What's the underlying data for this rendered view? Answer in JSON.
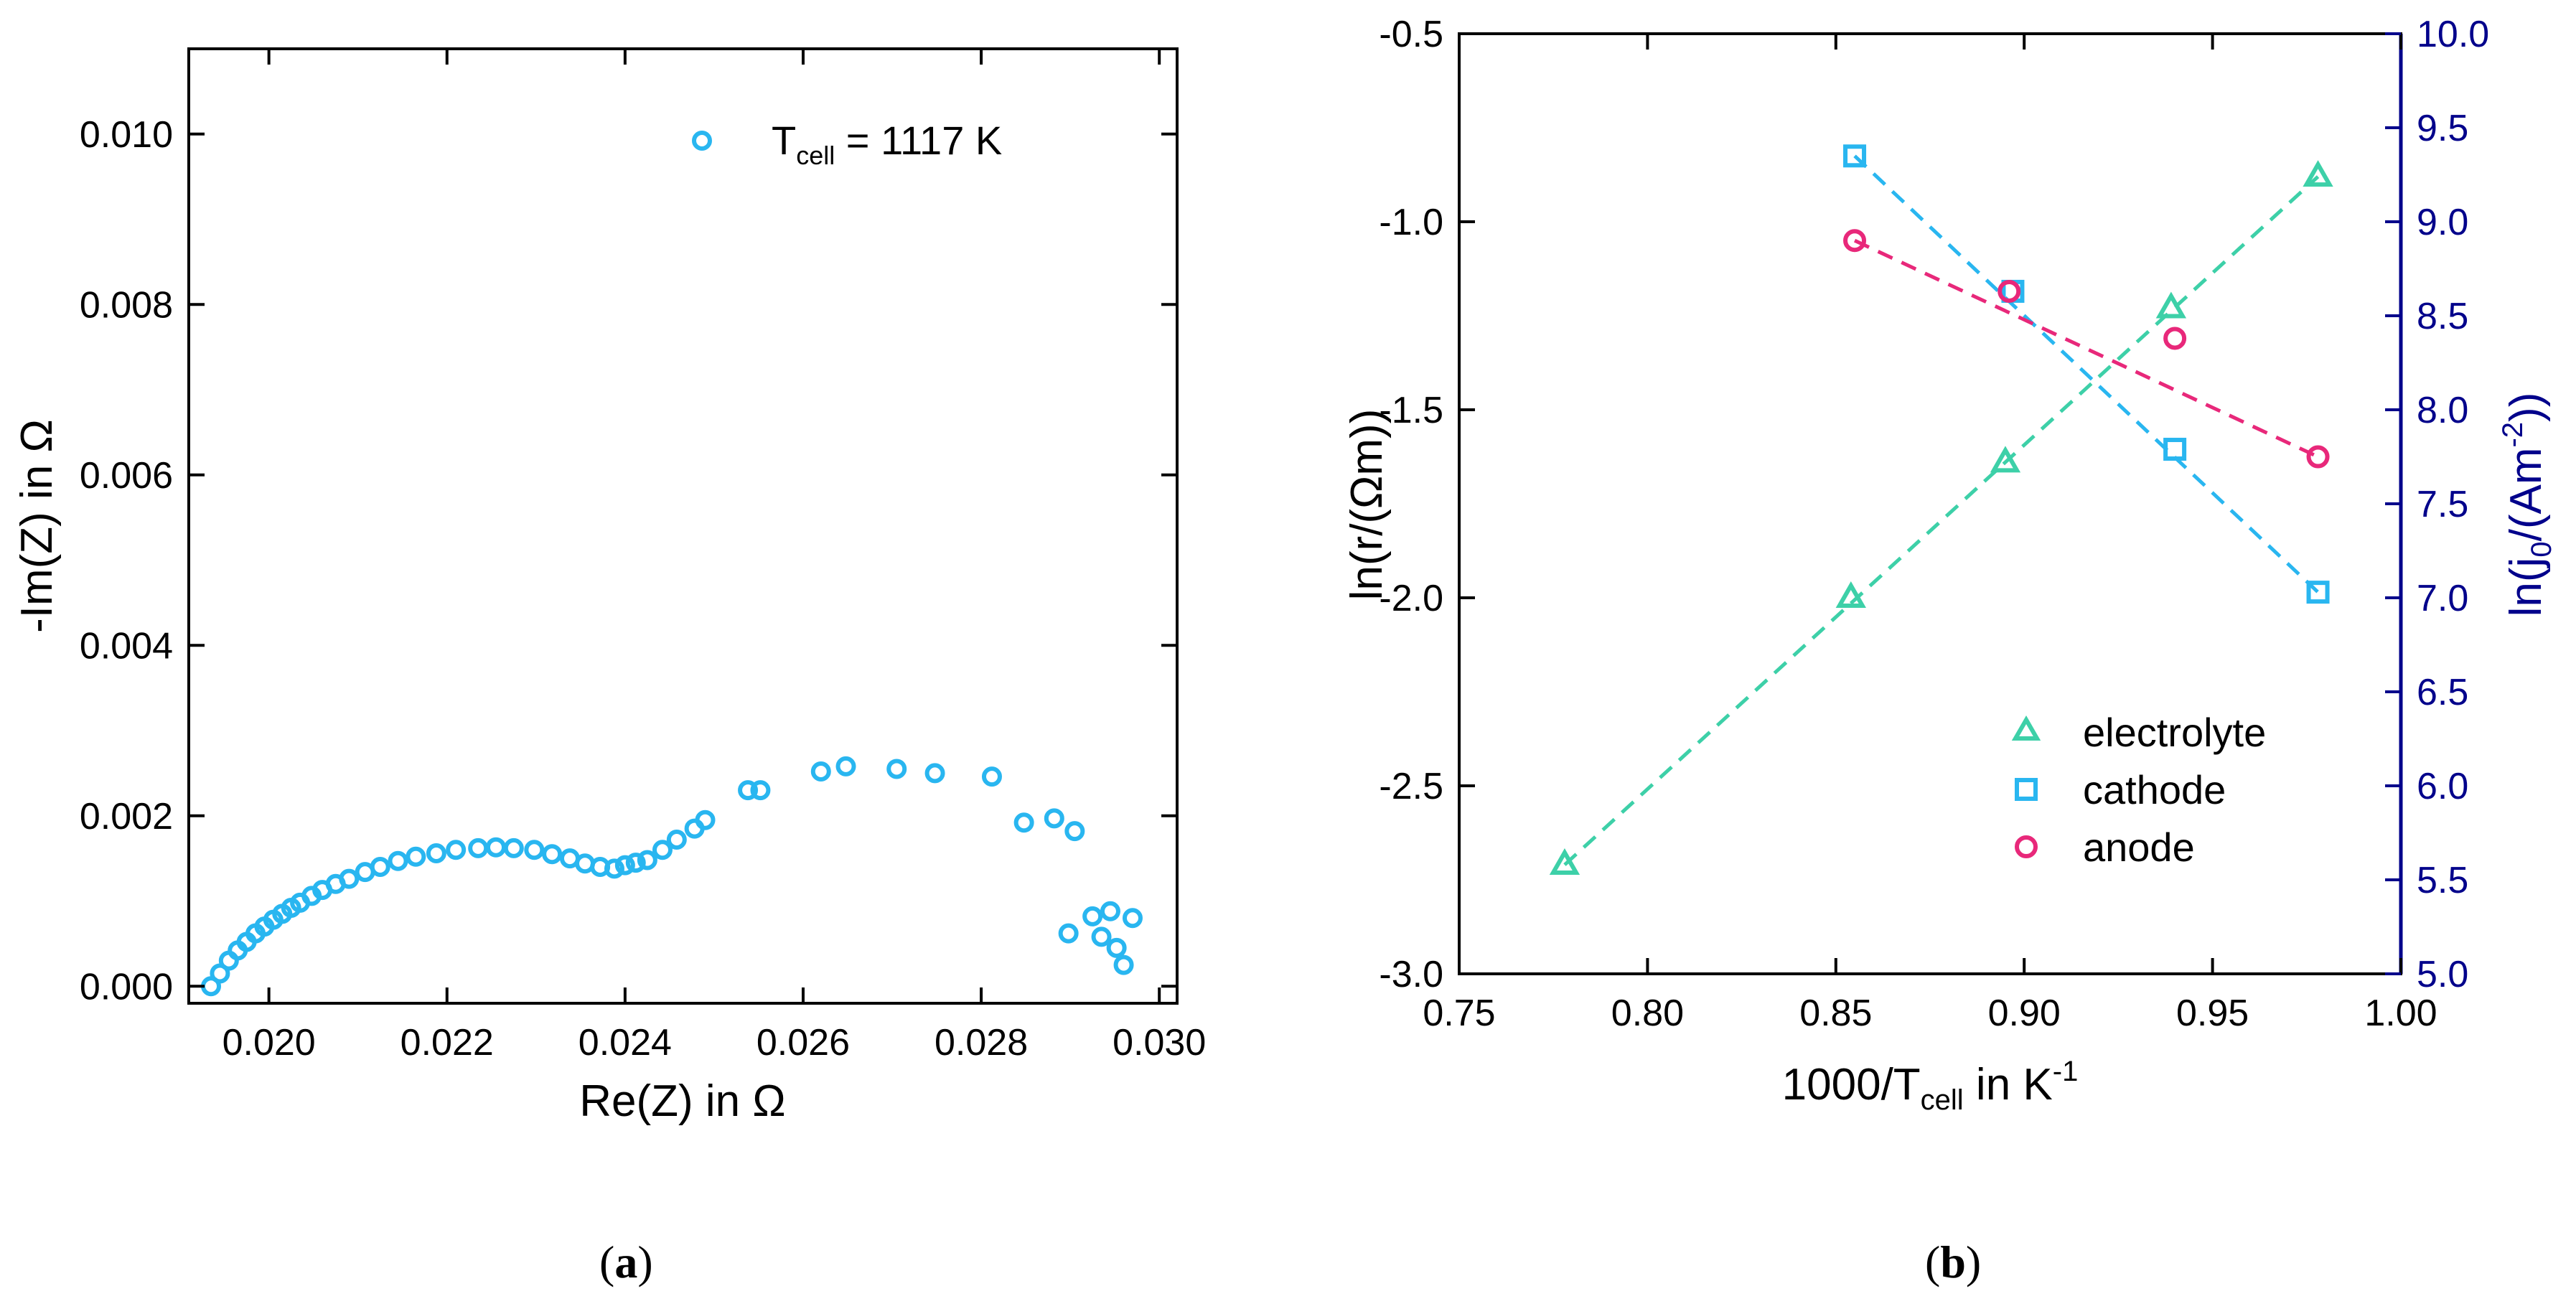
{
  "chart_data": [
    {
      "type": "scatter",
      "panel_label_open": "(",
      "panel_label_letter": "a",
      "panel_label_close": ")",
      "xlabel": "Re(Z) in Ω",
      "ylabel": "-Im(Z) in Ω",
      "xlim": [
        0.0191,
        0.0302
      ],
      "ylim": [
        -0.0002,
        0.011
      ],
      "xticks": [
        0.02,
        0.022,
        0.024,
        0.026,
        0.028,
        0.03
      ],
      "xtick_labels": [
        "0.020",
        "0.022",
        "0.024",
        "0.026",
        "0.028",
        "0.030"
      ],
      "yticks": [
        0.0,
        0.002,
        0.004,
        0.006,
        0.008,
        0.01
      ],
      "ytick_labels": [
        "0.000",
        "0.002",
        "0.004",
        "0.006",
        "0.008",
        "0.010"
      ],
      "legend": {
        "position": "top-right",
        "label_main": "T",
        "label_sub": "cell",
        "label_rest": " = 1117 K"
      },
      "color": "#29B6F0",
      "points": [
        [
          0.01935,
          0.0
        ],
        [
          0.01945,
          0.00015
        ],
        [
          0.01955,
          0.0003
        ],
        [
          0.01965,
          0.00042
        ],
        [
          0.01975,
          0.00052
        ],
        [
          0.01985,
          0.00062
        ],
        [
          0.01995,
          0.0007
        ],
        [
          0.02005,
          0.00078
        ],
        [
          0.02015,
          0.00085
        ],
        [
          0.02025,
          0.00092
        ],
        [
          0.02035,
          0.00098
        ],
        [
          0.02048,
          0.00106
        ],
        [
          0.0206,
          0.00113
        ],
        [
          0.02075,
          0.0012
        ],
        [
          0.0209,
          0.00126
        ],
        [
          0.02108,
          0.00134
        ],
        [
          0.02125,
          0.0014
        ],
        [
          0.02145,
          0.00147
        ],
        [
          0.02165,
          0.00152
        ],
        [
          0.02188,
          0.00156
        ],
        [
          0.0221,
          0.0016
        ],
        [
          0.02235,
          0.00162
        ],
        [
          0.02255,
          0.00163
        ],
        [
          0.02275,
          0.00162
        ],
        [
          0.02298,
          0.0016
        ],
        [
          0.02318,
          0.00155
        ],
        [
          0.02338,
          0.0015
        ],
        [
          0.02355,
          0.00144
        ],
        [
          0.02372,
          0.0014
        ],
        [
          0.02388,
          0.00138
        ],
        [
          0.024,
          0.00142
        ],
        [
          0.02412,
          0.00145
        ],
        [
          0.02425,
          0.00148
        ],
        [
          0.02442,
          0.0016
        ],
        [
          0.02458,
          0.00172
        ],
        [
          0.02478,
          0.00185
        ],
        [
          0.0249,
          0.00195
        ],
        [
          0.02538,
          0.0023
        ],
        [
          0.02552,
          0.0023
        ],
        [
          0.0262,
          0.00252
        ],
        [
          0.02648,
          0.00258
        ],
        [
          0.02705,
          0.00255
        ],
        [
          0.02748,
          0.0025
        ],
        [
          0.02812,
          0.00246
        ],
        [
          0.02848,
          0.00192
        ],
        [
          0.02882,
          0.00197
        ],
        [
          0.02905,
          0.00182
        ],
        [
          0.02898,
          0.00062
        ],
        [
          0.02925,
          0.00082
        ],
        [
          0.02935,
          0.00058
        ],
        [
          0.02945,
          0.00088
        ],
        [
          0.02952,
          0.00045
        ],
        [
          0.0296,
          0.00025
        ],
        [
          0.0297,
          0.0008
        ]
      ]
    },
    {
      "type": "scatter",
      "panel_label_open": "(",
      "panel_label_letter": "b",
      "panel_label_close": ")",
      "xlabel_main": "1000/T",
      "xlabel_sub": "cell",
      "xlabel_rest": " in K",
      "xlabel_sup": "-1",
      "ylabel_left": "ln(r/(Ωm))",
      "ylabel_right_main": "ln(j",
      "ylabel_right_sub": "0",
      "ylabel_right_mid": "/(Am",
      "ylabel_right_sup": "-2",
      "ylabel_right_end": "))",
      "xlim": [
        0.75,
        1.0
      ],
      "ylim_left": [
        -3.0,
        -0.5
      ],
      "ylim_right": [
        5.0,
        10.0
      ],
      "xticks": [
        0.75,
        0.8,
        0.85,
        0.9,
        0.95,
        1.0
      ],
      "xtick_labels": [
        "0.75",
        "0.80",
        "0.85",
        "0.90",
        "0.95",
        "1.00"
      ],
      "yticks_left": [
        -3.0,
        -2.5,
        -2.0,
        -1.5,
        -1.0,
        -0.5
      ],
      "ytick_labels_left": [
        "-3.0",
        "-2.5",
        "-2.0",
        "-1.5",
        "-1.0",
        "-0.5"
      ],
      "yticks_right": [
        5.0,
        5.5,
        6.0,
        6.5,
        7.0,
        7.5,
        8.0,
        8.5,
        9.0,
        9.5,
        10.0
      ],
      "ytick_labels_right": [
        "5.0",
        "5.5",
        "6.0",
        "6.5",
        "7.0",
        "7.5",
        "8.0",
        "8.5",
        "9.0",
        "9.5",
        "10.0"
      ],
      "right_axis_color": "#00008B",
      "legend_position": "bottom-right",
      "series": [
        {
          "name": "electrolyte",
          "marker": "triangle",
          "color": "#3DD0A8",
          "axis": "left",
          "x": [
            0.778,
            0.854,
            0.895,
            0.939,
            0.978
          ],
          "y": [
            -2.71,
            -2.0,
            -1.64,
            -1.23,
            -0.88
          ],
          "fit": [
            [
              0.778,
              -2.71
            ],
            [
              0.978,
              -0.88
            ]
          ]
        },
        {
          "name": "cathode",
          "marker": "square",
          "color": "#29B6F0",
          "axis": "right",
          "x": [
            0.855,
            0.897,
            0.94,
            0.978
          ],
          "y": [
            9.35,
            8.63,
            7.79,
            7.03
          ],
          "fit": [
            [
              0.855,
              9.35
            ],
            [
              0.978,
              7.03
            ]
          ]
        },
        {
          "name": "anode",
          "marker": "circle",
          "color": "#E8287A",
          "axis": "right",
          "x": [
            0.855,
            0.896,
            0.94,
            0.978
          ],
          "y": [
            8.9,
            8.63,
            8.38,
            7.75
          ],
          "fit": [
            [
              0.855,
              8.9
            ],
            [
              0.978,
              7.75
            ]
          ]
        }
      ]
    }
  ]
}
